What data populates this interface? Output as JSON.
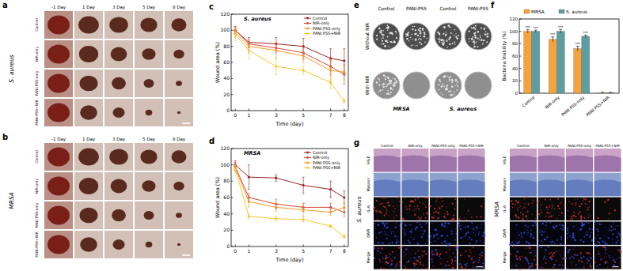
{
  "panels": {
    "letters": [
      "a",
      "b",
      "c",
      "d",
      "e",
      "f",
      "g"
    ],
    "wound_photos": {
      "days": [
        "-1 Day",
        "1 Day",
        "3 Day",
        "5 Day",
        "8 Day"
      ],
      "groups": [
        "Control",
        "NIR-only",
        "PANI:PSS-only",
        "PANI:PSS+NIR"
      ],
      "bacteria": [
        "S. aureus",
        "MRSA"
      ]
    },
    "plates": {
      "columns": [
        "Control",
        "PANI:PSS",
        "Control",
        "PANI:PSS"
      ],
      "rows": [
        "Without NIR",
        "With NIR"
      ],
      "bacteria": [
        "MRSA",
        "S. aureus"
      ]
    },
    "histology": {
      "columns": [
        "Control",
        "NIR-only",
        "PANI:PSS-only",
        "PANI:PSS+NIR"
      ],
      "rows": [
        "H&E",
        "Masson",
        "IL-6",
        "DAPI",
        "Merge"
      ],
      "bacteria": [
        "S. aureus",
        "MRSA"
      ]
    }
  },
  "chart_data": [
    {
      "type": "line",
      "title": "S. aureus",
      "x_label": "Time (day)",
      "y_label": "Wound area (%)",
      "x": [
        0,
        1,
        3,
        5,
        7,
        8
      ],
      "xlim": [
        -0.3,
        8.3
      ],
      "xticks": [
        0,
        1,
        3,
        5,
        7,
        8
      ],
      "ylim": [
        0,
        120
      ],
      "yticks": [
        0,
        20,
        40,
        60,
        80,
        100,
        120
      ],
      "legend": "upper right",
      "marker": "circle",
      "series": [
        {
          "name": "Control",
          "color": "#9b2226",
          "values": [
            100,
            85,
            83,
            80,
            65,
            62
          ],
          "errors": [
            5,
            6,
            8,
            10,
            12,
            15
          ]
        },
        {
          "name": "NIR-only",
          "color": "#d9483b",
          "values": [
            100,
            83,
            78,
            72,
            55,
            45
          ],
          "errors": [
            4,
            5,
            6,
            8,
            10,
            12
          ]
        },
        {
          "name": "PANI:PSS-only",
          "color": "#f29a2e",
          "values": [
            97,
            80,
            75,
            68,
            50,
            48
          ],
          "errors": [
            6,
            8,
            10,
            8,
            12,
            10
          ]
        },
        {
          "name": "PANI:PSS+NIR",
          "color": "#f7c531",
          "values": [
            95,
            75,
            55,
            50,
            35,
            12
          ],
          "errors": [
            8,
            10,
            10,
            5,
            8,
            3
          ]
        }
      ]
    },
    {
      "type": "line",
      "title": "MRSA",
      "x_label": "Time (day)",
      "y_label": "Wound area (%)",
      "x": [
        0,
        1,
        3,
        5,
        7,
        8
      ],
      "xlim": [
        -0.3,
        8.3
      ],
      "xticks": [
        0,
        1,
        3,
        5,
        7,
        8
      ],
      "ylim": [
        0,
        120
      ],
      "yticks": [
        0,
        20,
        40,
        60,
        80,
        100,
        120
      ],
      "legend": "upper right",
      "marker": "circle",
      "series": [
        {
          "name": "Control",
          "color": "#9b2226",
          "values": [
            100,
            85,
            84,
            75,
            70,
            60
          ],
          "errors": [
            5,
            15,
            4,
            10,
            10,
            8
          ]
        },
        {
          "name": "NIR-only",
          "color": "#d9483b",
          "values": [
            98,
            60,
            52,
            48,
            48,
            42
          ],
          "errors": [
            5,
            5,
            6,
            5,
            5,
            5
          ]
        },
        {
          "name": "PANI:PSS-only",
          "color": "#f29a2e",
          "values": [
            96,
            55,
            48,
            45,
            42,
            48
          ],
          "errors": [
            4,
            6,
            5,
            8,
            4,
            6
          ]
        },
        {
          "name": "PANI:PSS+NIR",
          "color": "#f7c531",
          "values": [
            95,
            37,
            34,
            33,
            25,
            12
          ],
          "errors": [
            5,
            3,
            3,
            3,
            2,
            2
          ]
        }
      ]
    },
    {
      "type": "bar",
      "y_label": "Bacteria Viability (%)",
      "categories": [
        "Control",
        "NIR-only",
        "PANI:PSS-only",
        "PANI:PSS+NIR"
      ],
      "ylim": [
        0,
        120
      ],
      "yticks": [
        0,
        20,
        40,
        60,
        80,
        100,
        120
      ],
      "legend": "top",
      "series": [
        {
          "name": "MRSA",
          "color": "#f4a43a",
          "values": [
            100,
            87,
            72,
            1
          ],
          "errors": [
            3,
            4,
            4,
            0.5
          ],
          "annotations": [
            "***",
            "***",
            "***",
            null
          ]
        },
        {
          "name": "S. aureus",
          "color": "#5f9ea0",
          "values": [
            100,
            100,
            92,
            1
          ],
          "errors": [
            2,
            3,
            2,
            0.5
          ],
          "annotations": [
            "***",
            "***",
            "***",
            null
          ]
        }
      ]
    }
  ]
}
